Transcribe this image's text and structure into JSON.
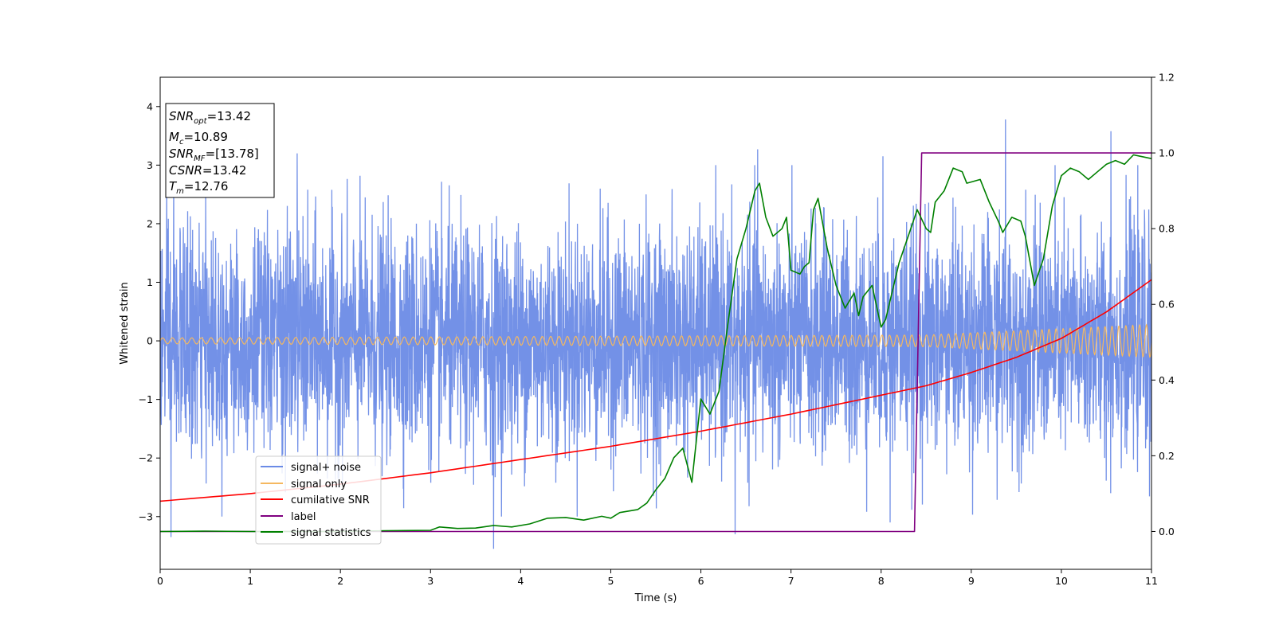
{
  "chart_data": {
    "type": "line",
    "xlabel": "Time (s)",
    "ylabel": "Whitened strain",
    "xlim": [
      0,
      11
    ],
    "ylim": [
      -3.9,
      4.5
    ],
    "y2lim": [
      -0.1,
      1.2
    ],
    "x_ticks": [
      "0",
      "1",
      "2",
      "3",
      "4",
      "5",
      "6",
      "7",
      "8",
      "9",
      "10",
      "11"
    ],
    "y_ticks": [
      "4",
      "3",
      "2",
      "1",
      "0",
      "−1",
      "−2",
      "−3"
    ],
    "y2_ticks": [
      "1.2",
      "1.0",
      "0.8",
      "0.6",
      "0.4",
      "0.2",
      "0.0"
    ],
    "y_tick_values": [
      4,
      3,
      2,
      1,
      0,
      -1,
      -2,
      -3
    ],
    "y2_tick_values": [
      1.2,
      1.0,
      0.8,
      0.6,
      0.4,
      0.2,
      0.0
    ],
    "grid": false,
    "legend_location": "lower-left",
    "stats_box": {
      "snr_opt": "=13.42",
      "mc": "=10.89",
      "snr_mf": "=[13.78]",
      "csnr": "=13.42",
      "tm": "=12.76"
    },
    "series": [
      {
        "name": "signal+ noise",
        "color": "#6b8be6",
        "axis": "left",
        "description_envelope": {
          "typical_abs_max": 2.5,
          "extremes": [
            3.78,
            -3.55
          ]
        },
        "peaks": [
          [
            0.15,
            2.95
          ],
          [
            1.52,
            3.2
          ],
          [
            6.63,
            3.27
          ],
          [
            8.02,
            3.15
          ],
          [
            9.38,
            3.78
          ],
          [
            10.55,
            3.58
          ],
          [
            3.7,
            -3.55
          ],
          [
            6.38,
            -3.3
          ],
          [
            0.12,
            -3.35
          ],
          [
            8.1,
            -3.1
          ]
        ]
      },
      {
        "name": "signal only",
        "color": "#f5b860",
        "axis": "left",
        "amplitude": [
          [
            0,
            0.05
          ],
          [
            8.5,
            0.1
          ],
          [
            11,
            0.28
          ]
        ]
      },
      {
        "name": "cumilative SNR",
        "color": "#ff0000",
        "axis": "right",
        "points": [
          [
            0,
            0.08
          ],
          [
            1,
            0.1
          ],
          [
            2,
            0.125
          ],
          [
            3,
            0.155
          ],
          [
            4,
            0.19
          ],
          [
            5,
            0.225
          ],
          [
            6,
            0.265
          ],
          [
            7,
            0.31
          ],
          [
            8,
            0.36
          ],
          [
            8.5,
            0.385
          ],
          [
            9,
            0.42
          ],
          [
            9.5,
            0.46
          ],
          [
            10,
            0.51
          ],
          [
            10.5,
            0.58
          ],
          [
            11,
            0.665
          ]
        ]
      },
      {
        "name": "label",
        "color": "#800080",
        "axis": "right",
        "points": [
          [
            0,
            0.0
          ],
          [
            8.37,
            0.0
          ],
          [
            8.45,
            1.0
          ],
          [
            11,
            1.0
          ]
        ]
      },
      {
        "name": "signal statistics",
        "color": "#008000",
        "axis": "right",
        "points": [
          [
            0,
            0.0
          ],
          [
            0.5,
            0.001
          ],
          [
            1,
            0.0
          ],
          [
            1.5,
            0.0
          ],
          [
            2,
            0.0
          ],
          [
            2.5,
            0.002
          ],
          [
            3.0,
            0.003
          ],
          [
            3.1,
            0.012
          ],
          [
            3.3,
            0.008
          ],
          [
            3.5,
            0.009
          ],
          [
            3.7,
            0.016
          ],
          [
            3.9,
            0.012
          ],
          [
            4.1,
            0.02
          ],
          [
            4.3,
            0.035
          ],
          [
            4.5,
            0.037
          ],
          [
            4.7,
            0.03
          ],
          [
            4.9,
            0.04
          ],
          [
            5.0,
            0.035
          ],
          [
            5.1,
            0.05
          ],
          [
            5.3,
            0.058
          ],
          [
            5.4,
            0.075
          ],
          [
            5.5,
            0.11
          ],
          [
            5.6,
            0.14
          ],
          [
            5.7,
            0.195
          ],
          [
            5.8,
            0.22
          ],
          [
            5.9,
            0.13
          ],
          [
            6.0,
            0.35
          ],
          [
            6.1,
            0.31
          ],
          [
            6.2,
            0.37
          ],
          [
            6.3,
            0.55
          ],
          [
            6.4,
            0.72
          ],
          [
            6.5,
            0.8
          ],
          [
            6.6,
            0.9
          ],
          [
            6.65,
            0.92
          ],
          [
            6.72,
            0.83
          ],
          [
            6.8,
            0.78
          ],
          [
            6.9,
            0.8
          ],
          [
            6.95,
            0.83
          ],
          [
            7.0,
            0.69
          ],
          [
            7.1,
            0.68
          ],
          [
            7.15,
            0.7
          ],
          [
            7.2,
            0.71
          ],
          [
            7.25,
            0.85
          ],
          [
            7.3,
            0.88
          ],
          [
            7.4,
            0.75
          ],
          [
            7.5,
            0.65
          ],
          [
            7.6,
            0.59
          ],
          [
            7.7,
            0.63
          ],
          [
            7.75,
            0.57
          ],
          [
            7.8,
            0.62
          ],
          [
            7.9,
            0.65
          ],
          [
            8.0,
            0.54
          ],
          [
            8.05,
            0.56
          ],
          [
            8.2,
            0.71
          ],
          [
            8.3,
            0.78
          ],
          [
            8.4,
            0.85
          ],
          [
            8.5,
            0.8
          ],
          [
            8.55,
            0.79
          ],
          [
            8.6,
            0.87
          ],
          [
            8.7,
            0.9
          ],
          [
            8.8,
            0.96
          ],
          [
            8.9,
            0.95
          ],
          [
            8.95,
            0.92
          ],
          [
            9.1,
            0.93
          ],
          [
            9.2,
            0.87
          ],
          [
            9.3,
            0.82
          ],
          [
            9.35,
            0.79
          ],
          [
            9.45,
            0.83
          ],
          [
            9.55,
            0.82
          ],
          [
            9.6,
            0.78
          ],
          [
            9.7,
            0.65
          ],
          [
            9.8,
            0.72
          ],
          [
            9.9,
            0.86
          ],
          [
            10.0,
            0.94
          ],
          [
            10.1,
            0.96
          ],
          [
            10.2,
            0.95
          ],
          [
            10.3,
            0.93
          ],
          [
            10.4,
            0.95
          ],
          [
            10.5,
            0.97
          ],
          [
            10.6,
            0.98
          ],
          [
            10.7,
            0.97
          ],
          [
            10.8,
            0.995
          ],
          [
            10.9,
            0.99
          ],
          [
            11,
            0.985
          ]
        ]
      }
    ]
  }
}
